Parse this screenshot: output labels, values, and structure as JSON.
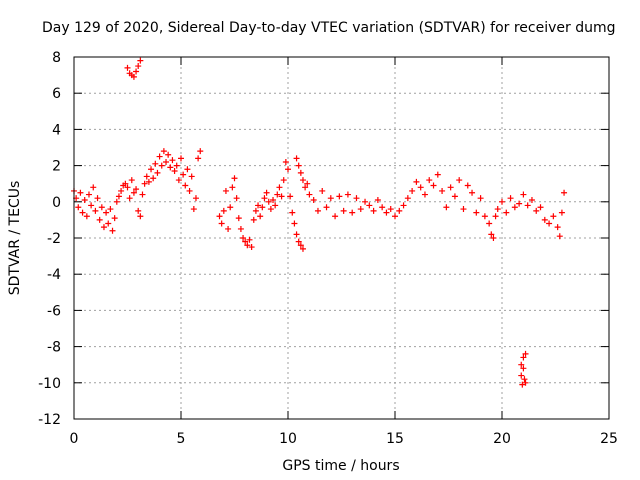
{
  "chart_data": {
    "type": "scatter",
    "title": "Day 129 of 2020, Sidereal Day-to-day VTEC variation (SDTVAR) for receiver dumg",
    "xlabel": "GPS time / hours",
    "ylabel": "SDTVAR / TECUs",
    "xlim": [
      0,
      25
    ],
    "ylim": [
      -12,
      8
    ],
    "x_ticks": [
      0,
      5,
      10,
      15,
      20,
      25
    ],
    "y_ticks": [
      -12,
      -10,
      -8,
      -6,
      -4,
      -2,
      0,
      2,
      4,
      6,
      8
    ],
    "grid": true,
    "marker": "+",
    "series_color": "#ff0000",
    "series": [
      {
        "name": "SDTVAR",
        "points": [
          [
            0.0,
            0.6
          ],
          [
            0.1,
            0.2
          ],
          [
            0.2,
            -0.3
          ],
          [
            0.3,
            0.5
          ],
          [
            0.4,
            -0.6
          ],
          [
            0.5,
            0.1
          ],
          [
            0.6,
            -0.8
          ],
          [
            0.7,
            0.4
          ],
          [
            0.8,
            -0.2
          ],
          [
            0.9,
            0.8
          ],
          [
            1.0,
            -0.5
          ],
          [
            1.1,
            0.2
          ],
          [
            1.2,
            -1.0
          ],
          [
            1.3,
            -0.3
          ],
          [
            1.4,
            -1.4
          ],
          [
            1.5,
            -0.6
          ],
          [
            1.6,
            -1.2
          ],
          [
            1.7,
            -0.4
          ],
          [
            1.8,
            -1.6
          ],
          [
            1.9,
            -0.9
          ],
          [
            2.0,
            0.0
          ],
          [
            2.1,
            0.3
          ],
          [
            2.2,
            0.6
          ],
          [
            2.3,
            0.9
          ],
          [
            2.4,
            1.0
          ],
          [
            2.5,
            0.8
          ],
          [
            2.6,
            0.2
          ],
          [
            2.7,
            1.2
          ],
          [
            2.8,
            0.5
          ],
          [
            2.9,
            0.7
          ],
          [
            3.0,
            -0.5
          ],
          [
            3.1,
            -0.8
          ],
          [
            3.2,
            0.4
          ],
          [
            3.3,
            1.0
          ],
          [
            3.4,
            1.4
          ],
          [
            3.5,
            1.1
          ],
          [
            3.6,
            1.8
          ],
          [
            3.7,
            1.3
          ],
          [
            3.8,
            2.1
          ],
          [
            3.9,
            1.6
          ],
          [
            4.0,
            2.5
          ],
          [
            4.1,
            2.0
          ],
          [
            4.2,
            2.8
          ],
          [
            4.3,
            2.2
          ],
          [
            4.4,
            2.6
          ],
          [
            4.5,
            1.9
          ],
          [
            4.6,
            2.3
          ],
          [
            4.7,
            1.7
          ],
          [
            4.8,
            2.0
          ],
          [
            4.9,
            1.2
          ],
          [
            5.0,
            2.4
          ],
          [
            5.1,
            1.5
          ],
          [
            5.2,
            0.9
          ],
          [
            5.3,
            1.8
          ],
          [
            5.4,
            0.6
          ],
          [
            5.5,
            1.4
          ],
          [
            5.6,
            -0.4
          ],
          [
            5.7,
            0.2
          ],
          [
            5.8,
            2.4
          ],
          [
            5.9,
            2.8
          ],
          [
            2.5,
            7.4
          ],
          [
            2.6,
            7.1
          ],
          [
            2.7,
            7.0
          ],
          [
            2.8,
            6.9
          ],
          [
            2.9,
            7.2
          ],
          [
            3.0,
            7.5
          ],
          [
            3.1,
            7.8
          ],
          [
            6.8,
            -0.8
          ],
          [
            6.9,
            -1.2
          ],
          [
            7.0,
            -0.5
          ],
          [
            7.1,
            0.6
          ],
          [
            7.2,
            -1.5
          ],
          [
            7.3,
            -0.3
          ],
          [
            7.4,
            0.8
          ],
          [
            7.5,
            1.3
          ],
          [
            7.6,
            0.2
          ],
          [
            7.7,
            -0.9
          ],
          [
            7.8,
            -1.5
          ],
          [
            7.9,
            -2.0
          ],
          [
            8.0,
            -2.2
          ],
          [
            8.1,
            -2.4
          ],
          [
            8.2,
            -2.1
          ],
          [
            8.3,
            -2.5
          ],
          [
            8.4,
            -1.0
          ],
          [
            8.5,
            -0.5
          ],
          [
            8.6,
            -0.2
          ],
          [
            8.7,
            -0.8
          ],
          [
            8.8,
            -0.3
          ],
          [
            8.9,
            0.2
          ],
          [
            9.0,
            0.5
          ],
          [
            9.1,
            0.0
          ],
          [
            9.2,
            -0.4
          ],
          [
            9.3,
            0.1
          ],
          [
            9.4,
            -0.2
          ],
          [
            9.5,
            0.4
          ],
          [
            9.6,
            0.8
          ],
          [
            9.7,
            0.3
          ],
          [
            9.8,
            1.2
          ],
          [
            9.9,
            2.2
          ],
          [
            10.0,
            1.8
          ],
          [
            10.1,
            0.3
          ],
          [
            10.2,
            -0.6
          ],
          [
            10.3,
            -1.2
          ],
          [
            10.4,
            -1.8
          ],
          [
            10.5,
            -2.2
          ],
          [
            10.6,
            -2.4
          ],
          [
            10.7,
            -2.6
          ],
          [
            10.4,
            2.4
          ],
          [
            10.5,
            2.0
          ],
          [
            10.6,
            1.6
          ],
          [
            10.7,
            1.2
          ],
          [
            10.8,
            0.8
          ],
          [
            10.9,
            1.0
          ],
          [
            11.0,
            0.4
          ],
          [
            11.2,
            0.1
          ],
          [
            11.4,
            -0.5
          ],
          [
            11.6,
            0.6
          ],
          [
            11.8,
            -0.3
          ],
          [
            12.0,
            0.2
          ],
          [
            12.2,
            -0.8
          ],
          [
            12.4,
            0.3
          ],
          [
            12.6,
            -0.5
          ],
          [
            12.8,
            0.4
          ],
          [
            13.0,
            -0.6
          ],
          [
            13.2,
            0.2
          ],
          [
            13.4,
            -0.4
          ],
          [
            13.6,
            0.0
          ],
          [
            13.8,
            -0.2
          ],
          [
            14.0,
            -0.5
          ],
          [
            14.2,
            0.1
          ],
          [
            14.4,
            -0.3
          ],
          [
            14.6,
            -0.6
          ],
          [
            14.8,
            -0.4
          ],
          [
            15.0,
            -0.8
          ],
          [
            15.2,
            -0.5
          ],
          [
            15.4,
            -0.2
          ],
          [
            15.6,
            0.2
          ],
          [
            15.8,
            0.6
          ],
          [
            16.0,
            1.1
          ],
          [
            16.2,
            0.8
          ],
          [
            16.4,
            0.4
          ],
          [
            16.6,
            1.2
          ],
          [
            16.8,
            0.9
          ],
          [
            17.0,
            1.5
          ],
          [
            17.2,
            0.6
          ],
          [
            17.4,
            -0.3
          ],
          [
            17.6,
            0.8
          ],
          [
            17.8,
            0.3
          ],
          [
            18.0,
            1.2
          ],
          [
            18.2,
            -0.4
          ],
          [
            18.4,
            0.9
          ],
          [
            18.6,
            0.5
          ],
          [
            18.8,
            -0.6
          ],
          [
            19.0,
            0.2
          ],
          [
            19.2,
            -0.8
          ],
          [
            19.4,
            -1.2
          ],
          [
            19.5,
            -1.8
          ],
          [
            19.6,
            -2.0
          ],
          [
            19.7,
            -0.8
          ],
          [
            19.8,
            -0.4
          ],
          [
            20.0,
            0.0
          ],
          [
            20.2,
            -0.6
          ],
          [
            20.4,
            0.2
          ],
          [
            20.6,
            -0.3
          ],
          [
            20.8,
            -0.1
          ],
          [
            21.0,
            0.4
          ],
          [
            21.2,
            -0.2
          ],
          [
            21.4,
            0.1
          ],
          [
            21.6,
            -0.5
          ],
          [
            21.8,
            -0.3
          ],
          [
            22.0,
            -1.0
          ],
          [
            22.2,
            -1.2
          ],
          [
            22.4,
            -0.8
          ],
          [
            22.6,
            -1.4
          ],
          [
            22.7,
            -1.9
          ],
          [
            22.8,
            -0.6
          ],
          [
            22.9,
            0.5
          ],
          [
            20.9,
            -9.0
          ],
          [
            20.9,
            -9.6
          ],
          [
            20.95,
            -10.1
          ],
          [
            21.0,
            -8.6
          ],
          [
            21.0,
            -9.2
          ],
          [
            21.05,
            -9.8
          ],
          [
            21.1,
            -8.4
          ],
          [
            21.1,
            -10.0
          ]
        ]
      }
    ]
  }
}
